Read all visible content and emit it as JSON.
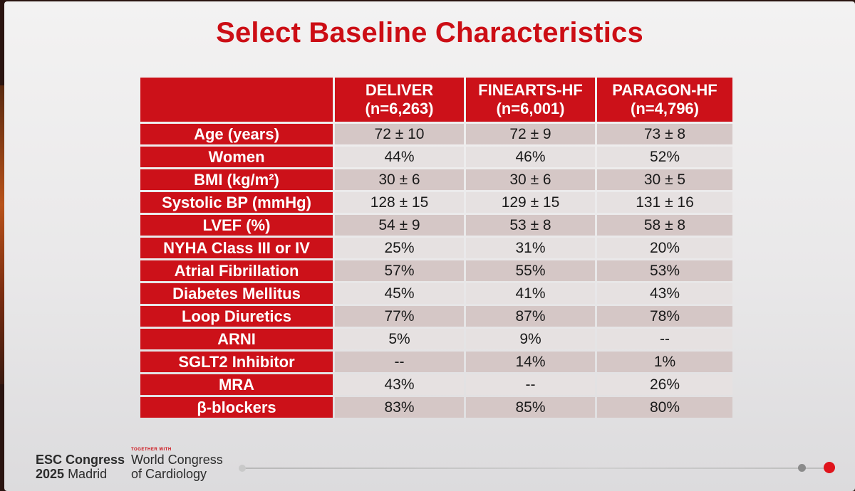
{
  "title": "Select Baseline Characteristics",
  "columns": [
    {
      "name": "DELIVER",
      "n": "(n=6,263)"
    },
    {
      "name": "FINEARTS-HF",
      "n": "(n=6,001)"
    },
    {
      "name": "PARAGON-HF",
      "n": "(n=4,796)"
    }
  ],
  "rows": [
    {
      "label": "Age (years)",
      "values": [
        "72 ± 10",
        "72 ± 9",
        "73 ± 8"
      ]
    },
    {
      "label": "Women",
      "values": [
        "44%",
        "46%",
        "52%"
      ]
    },
    {
      "label": "BMI (kg/m²)",
      "values": [
        "30 ± 6",
        "30 ± 6",
        "30 ± 5"
      ]
    },
    {
      "label": "Systolic BP (mmHg)",
      "values": [
        "128 ± 15",
        "129 ± 15",
        "131 ± 16"
      ]
    },
    {
      "label": "LVEF (%)",
      "values": [
        "54 ± 9",
        "53 ± 8",
        "58 ± 8"
      ]
    },
    {
      "label": "NYHA Class III or IV",
      "values": [
        "25%",
        "31%",
        "20%"
      ]
    },
    {
      "label": "Atrial Fibrillation",
      "values": [
        "57%",
        "55%",
        "53%"
      ]
    },
    {
      "label": "Diabetes Mellitus",
      "values": [
        "45%",
        "41%",
        "43%"
      ]
    },
    {
      "label": "Loop Diuretics",
      "values": [
        "77%",
        "87%",
        "78%"
      ]
    },
    {
      "label": "ARNI",
      "values": [
        "5%",
        "9%",
        "--"
      ]
    },
    {
      "label": "SGLT2 Inhibitor",
      "values": [
        "--",
        "14%",
        "1%"
      ]
    },
    {
      "label": "MRA",
      "values": [
        "43%",
        "--",
        "26%"
      ]
    },
    {
      "label": "β-blockers",
      "values": [
        "83%",
        "85%",
        "80%"
      ]
    }
  ],
  "footer": {
    "congress": "ESC Congress",
    "year": "2025",
    "city": "Madrid",
    "together": "TOGETHER WITH",
    "wcc_line1": "World Congress",
    "wcc_line2": "of Cardiology"
  },
  "colors": {
    "accent_red": "#cc1119",
    "title_red": "#cc0e15"
  }
}
